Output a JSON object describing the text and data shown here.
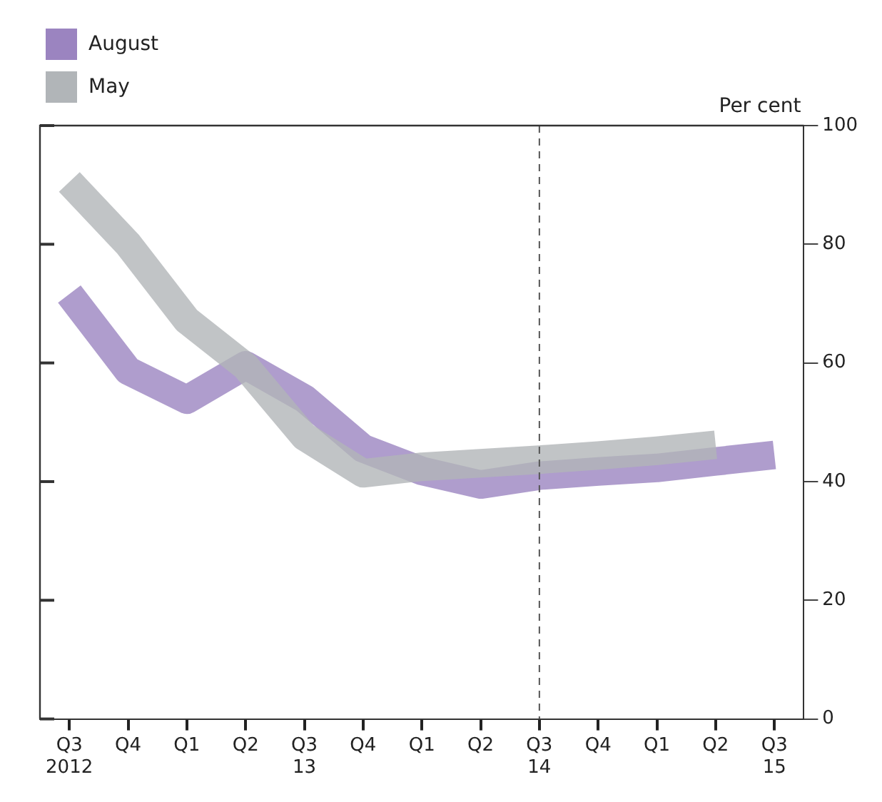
{
  "chart_data": {
    "type": "line",
    "ylabel": "Per cent",
    "categories": [
      "Q3\n2012",
      "Q4",
      "Q1",
      "Q2",
      "Q3\n13",
      "Q4",
      "Q1",
      "Q2",
      "Q3\n14",
      "Q4",
      "Q1",
      "Q2",
      "Q3\n15"
    ],
    "series": [
      {
        "name": "August",
        "color": "#9b84c0",
        "values": [
          71.6,
          58.7,
          53.8,
          59.6,
          54,
          45.6,
          41.8,
          39.5,
          41,
          41.7,
          42.3,
          43.4,
          44.5
        ]
      },
      {
        "name": "May",
        "color": "#b1b5b8",
        "values": [
          90.5,
          80,
          67.2,
          59.4,
          47.6,
          41.4,
          42.5,
          43.1,
          43.7,
          44.4,
          45.2,
          46.2,
          null
        ]
      }
    ],
    "ylim": [
      0,
      100
    ],
    "yticks": [
      0,
      20,
      40,
      60,
      80,
      100
    ],
    "ref_lines": [
      {
        "axis": "x",
        "value": "Q3\n14",
        "line_style": "dashed"
      }
    ],
    "legend": "top left",
    "grid": false
  }
}
